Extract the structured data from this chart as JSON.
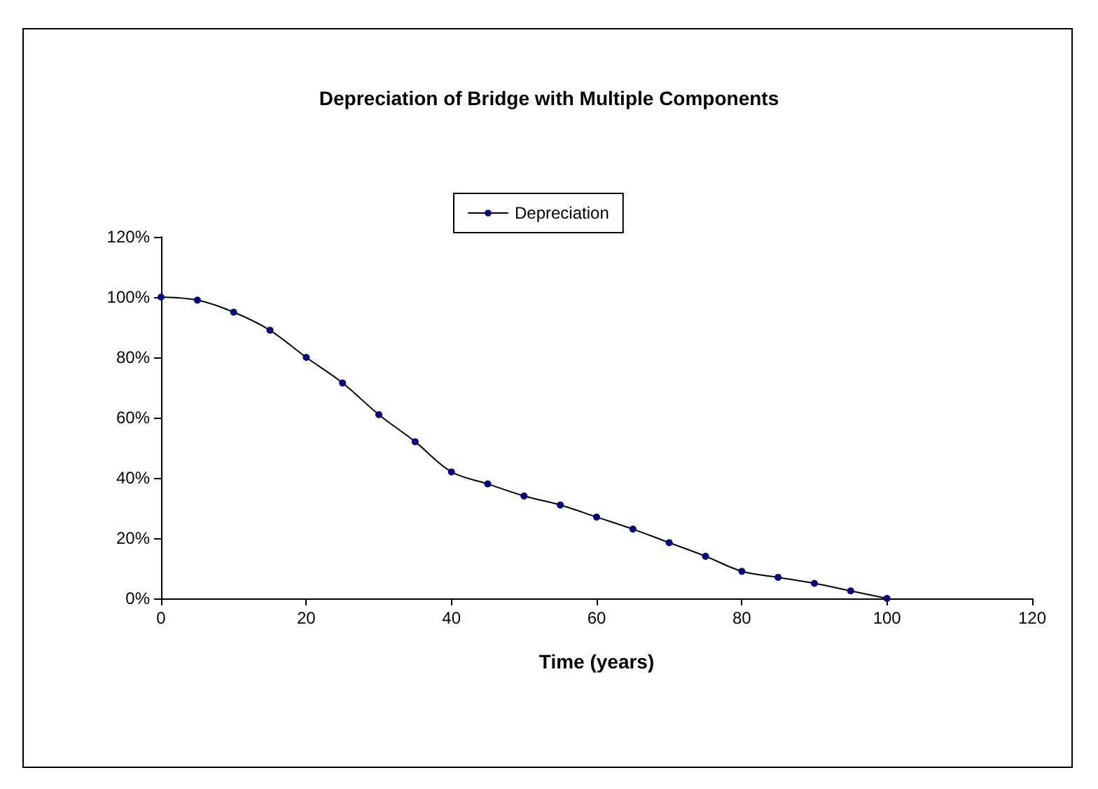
{
  "chart_data": {
    "type": "line",
    "title": "Depreciation of Bridge with Multiple Components",
    "xlabel": "Time (years)",
    "x": [
      0,
      5,
      10,
      15,
      20,
      25,
      30,
      35,
      40,
      45,
      50,
      55,
      60,
      65,
      70,
      75,
      80,
      85,
      90,
      95,
      100
    ],
    "series": [
      {
        "name": "Depreciation",
        "color": "#000080",
        "values": [
          1.0,
          0.99,
          0.95,
          0.89,
          0.8,
          0.715,
          0.61,
          0.52,
          0.42,
          0.38,
          0.34,
          0.31,
          0.27,
          0.23,
          0.185,
          0.14,
          0.09,
          0.07,
          0.05,
          0.025,
          0.0
        ]
      }
    ],
    "xlim": [
      0,
      120
    ],
    "xticks": [
      0,
      20,
      40,
      60,
      80,
      100,
      120
    ],
    "ylim": [
      0,
      1.2
    ],
    "yticks": [
      {
        "value": 0,
        "label": "0%"
      },
      {
        "value": 0.2,
        "label": "20%"
      },
      {
        "value": 0.4,
        "label": "40%"
      },
      {
        "value": 0.6,
        "label": "60%"
      },
      {
        "value": 0.8,
        "label": "80%"
      },
      {
        "value": 1.0,
        "label": "100%"
      },
      {
        "value": 1.2,
        "label": "120%"
      }
    ],
    "grid": false,
    "legend": "top",
    "marker": "circle",
    "line_style": "solid"
  }
}
